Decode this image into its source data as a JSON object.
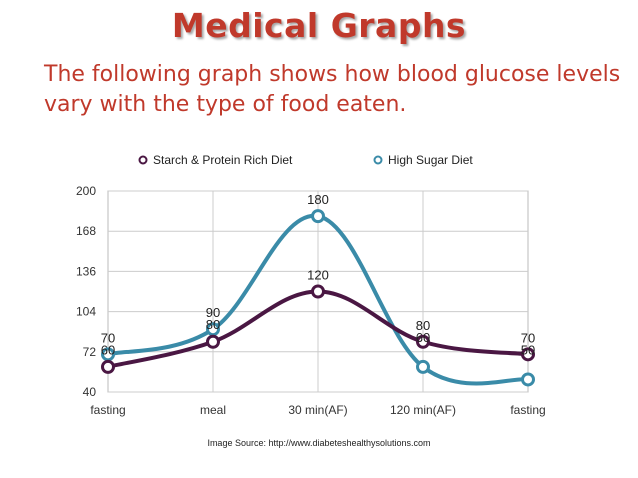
{
  "slide": {
    "title": "Medical Graphs",
    "subtitle": "The following graph shows how blood glucose levels vary with the type of food eaten.",
    "source": "Image Source: http://www.diabeteshealthysolutions.com"
  },
  "chart_data": {
    "type": "line",
    "categories": [
      "fasting",
      "meal",
      "30 min(AF)",
      "120 min(AF)",
      "fasting"
    ],
    "series": [
      {
        "name": "Starch & Protein Rich Diet",
        "values": [
          60,
          80,
          120,
          80,
          70
        ],
        "color": "#4a1743"
      },
      {
        "name": "High Sugar Diet",
        "values": [
          70,
          90,
          180,
          60,
          50
        ],
        "color": "#3a8ba8"
      }
    ],
    "ylim": [
      40,
      200
    ],
    "yticks": [
      "40",
      "72",
      "104",
      "136",
      "168",
      "200"
    ],
    "grid": true,
    "legend": "top",
    "smooth": true
  }
}
